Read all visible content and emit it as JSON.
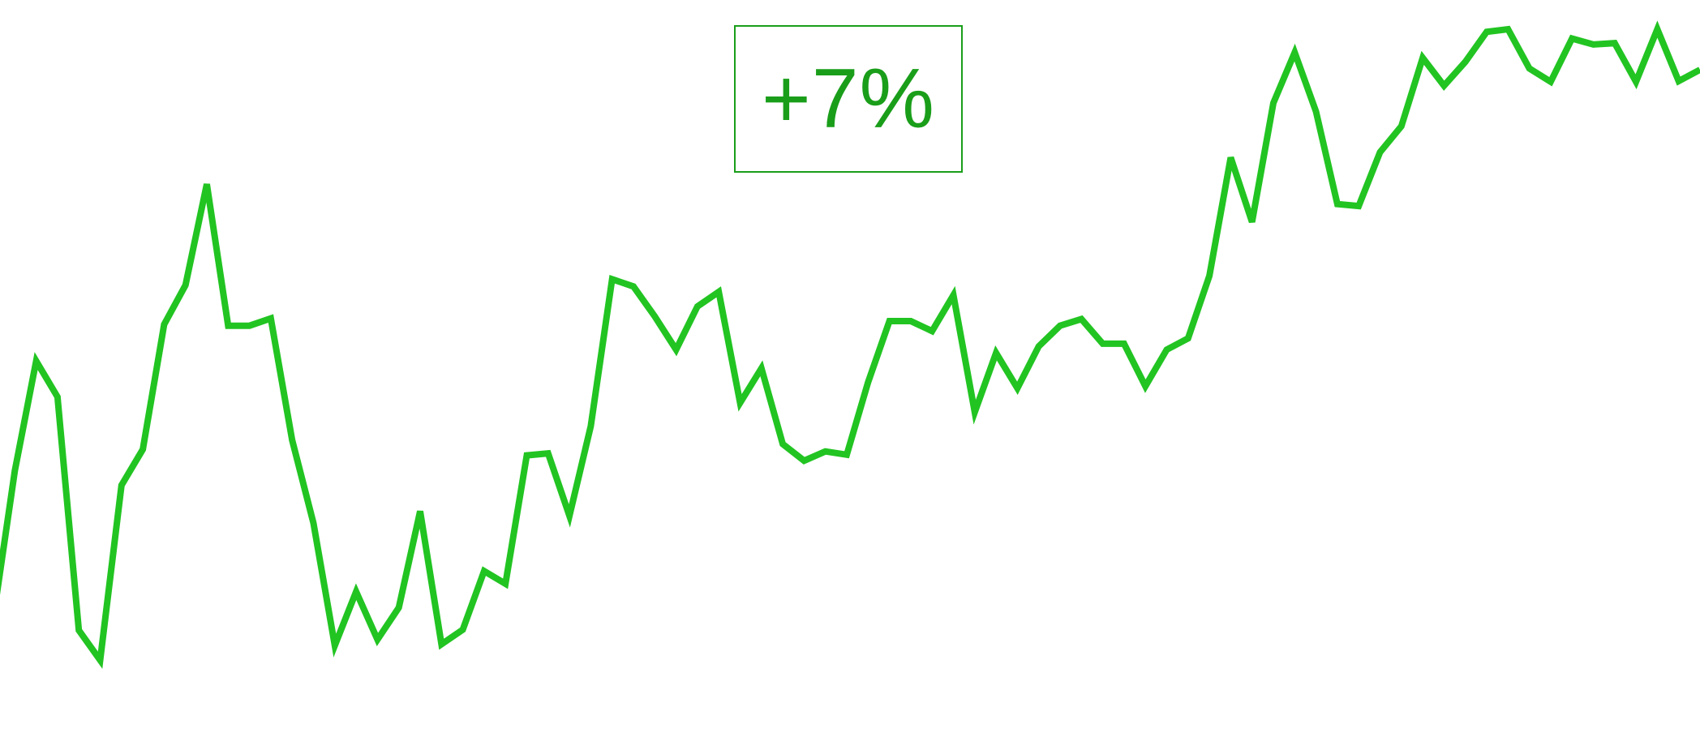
{
  "badge": {
    "label": "+7%",
    "color": "#1a9e1a"
  },
  "chart_data": {
    "type": "line",
    "title": "",
    "xlabel": "",
    "ylabel": "",
    "grid": false,
    "legend": "none",
    "x": [
      0,
      1,
      2,
      3,
      4,
      5,
      6,
      7,
      8,
      9,
      10,
      11,
      12,
      13,
      14,
      15,
      16,
      17,
      18,
      19,
      20,
      21,
      22,
      23,
      24,
      25,
      26,
      27,
      28,
      29,
      30,
      31,
      32,
      33,
      34,
      35,
      36,
      37,
      38,
      39,
      40,
      41,
      42,
      43,
      44,
      45,
      46,
      47,
      48,
      49,
      50,
      51,
      52,
      53,
      54,
      55,
      56,
      57,
      58,
      59,
      60,
      61,
      62,
      63,
      64,
      65,
      66,
      67,
      68,
      69,
      70,
      71,
      72,
      73,
      74,
      75,
      76,
      77,
      78,
      79,
      80
    ],
    "xlim": [
      0,
      80
    ],
    "ylim": [
      0,
      100
    ],
    "series": [
      {
        "color": "#22c422",
        "values": [
          11.6,
          33.6,
          50.1,
          44.7,
          9.6,
          5.1,
          31.4,
          36.8,
          55.6,
          61.5,
          76.7,
          55.4,
          55.4,
          56.5,
          38.2,
          25.7,
          7.3,
          15.4,
          8.2,
          13.0,
          27.5,
          7.5,
          9.7,
          18.5,
          16.6,
          35.9,
          36.2,
          26.8,
          40.3,
          62.4,
          61.3,
          56.8,
          51.8,
          58.3,
          60.5,
          43.8,
          49.0,
          37.6,
          35.1,
          36.5,
          36.0,
          46.9,
          56.1,
          56.1,
          54.6,
          60.0,
          42.4,
          51.3,
          46.0,
          52.3,
          55.4,
          56.4,
          52.7,
          52.7,
          46.3,
          51.8,
          53.5,
          62.9,
          80.7,
          71.0,
          88.9,
          96.5,
          87.6,
          73.7,
          73.4,
          81.5,
          85.4,
          95.7,
          91.5,
          95.1,
          99.6,
          100.0,
          94.1,
          92.1,
          98.6,
          97.7,
          97.9,
          92.1,
          100.0,
          92.2,
          93.9
        ]
      }
    ]
  }
}
